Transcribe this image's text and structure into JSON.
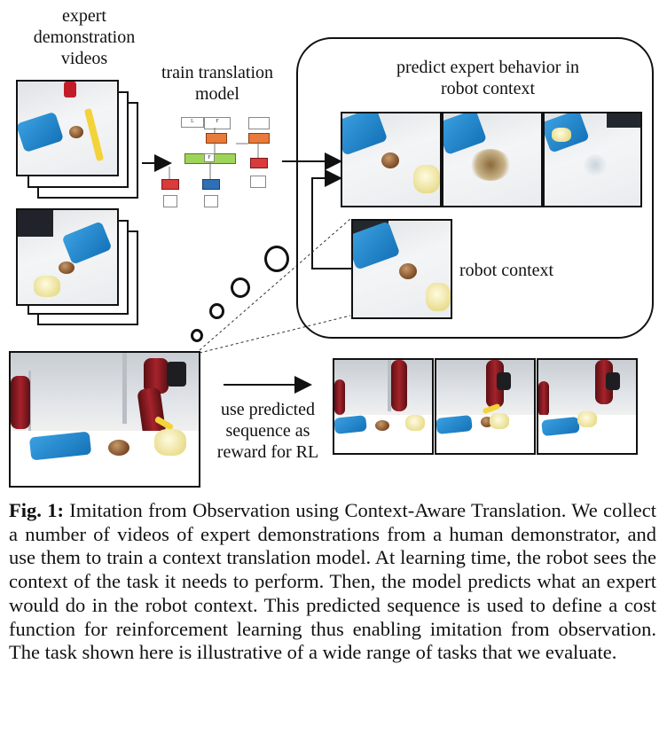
{
  "labels": {
    "expert_videos": [
      "expert",
      "demonstration",
      "videos"
    ],
    "train_model": [
      "train translation",
      "model"
    ],
    "predict": [
      "predict expert behavior in",
      "robot context"
    ],
    "robot_context": "robot context",
    "reward": [
      "use predicted",
      "sequence as",
      "reward for RL"
    ]
  },
  "caption": {
    "fig_label": "Fig. 1:",
    "text": " Imitation from Observation using Context-Aware Translation. We collect a number of videos of expert demonstrations from a human demonstrator, and use them to train a context translation model. At learning time, the robot sees the context of the task it needs to perform. Then, the model predicts what an expert would do in the robot context. This predicted sequence is used to define a cost function for reinforcement learning thus enabling imitation from observation. The task shown here is illustrative of a wide range of tasks that we evaluate."
  },
  "colors": {
    "pan_blue": "#1f86cf",
    "robot_red": "#a6232b",
    "diagram_orange": "#e87a3a",
    "diagram_blue": "#2f6fb5",
    "diagram_green": "#9fd45a"
  }
}
